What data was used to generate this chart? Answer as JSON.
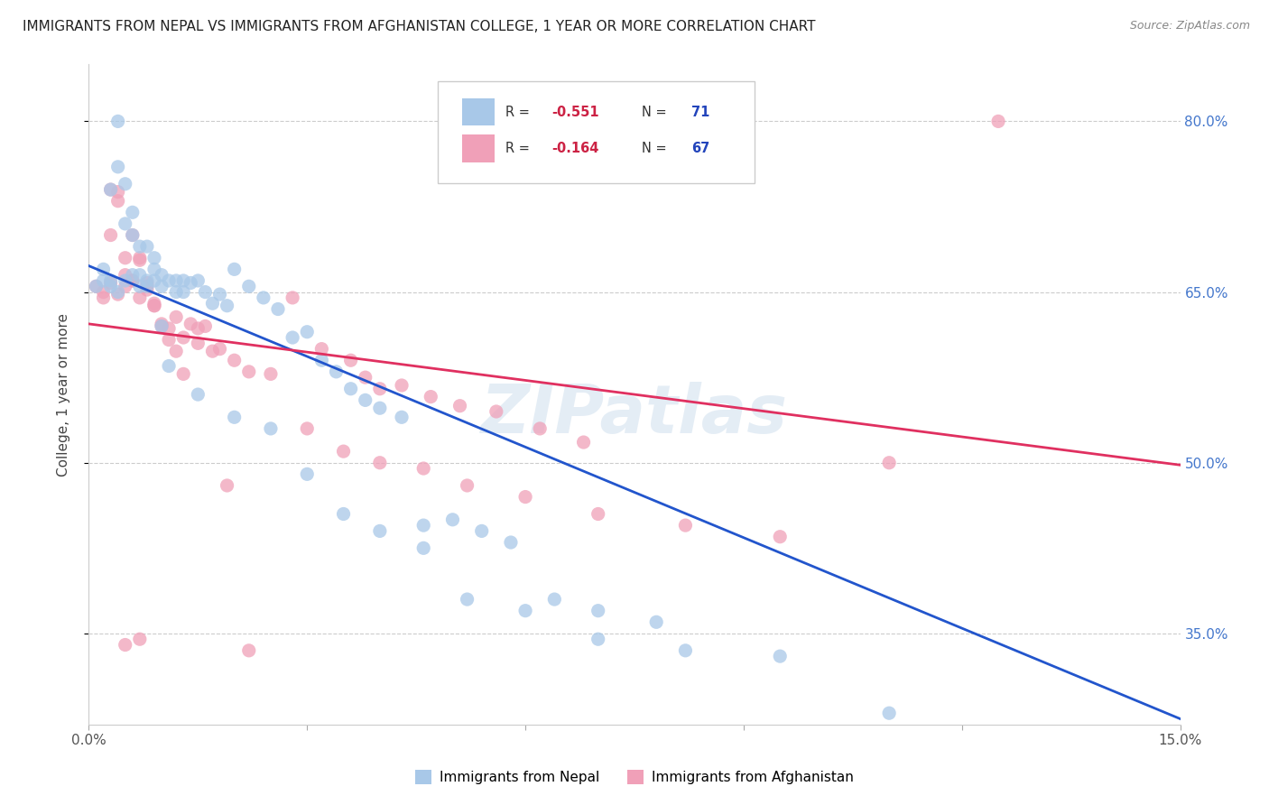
{
  "title": "IMMIGRANTS FROM NEPAL VS IMMIGRANTS FROM AFGHANISTAN COLLEGE, 1 YEAR OR MORE CORRELATION CHART",
  "source": "Source: ZipAtlas.com",
  "ylabel": "College, 1 year or more",
  "xlim": [
    0.0,
    0.15
  ],
  "ylim": [
    0.27,
    0.85
  ],
  "ytick_positions": [
    0.35,
    0.5,
    0.65,
    0.8
  ],
  "ytick_labels": [
    "35.0%",
    "50.0%",
    "65.0%",
    "80.0%"
  ],
  "xtick_positions": [
    0.0,
    0.03,
    0.06,
    0.09,
    0.12,
    0.15
  ],
  "xtick_labels": [
    "0.0%",
    "",
    "",
    "",
    "",
    "15.0%"
  ],
  "R_nepal": -0.551,
  "N_nepal": 71,
  "R_afghanistan": -0.164,
  "N_afghanistan": 67,
  "color_nepal": "#a8c8e8",
  "color_afghanistan": "#f0a0b8",
  "line_color_nepal": "#2255cc",
  "line_color_afghanistan": "#e03060",
  "legend_nepal": "Immigrants from Nepal",
  "legend_afghanistan": "Immigrants from Afghanistan",
  "watermark": "ZIPatlas",
  "nepal_line_x0": 0.0,
  "nepal_line_y0": 0.673,
  "nepal_line_x1": 0.15,
  "nepal_line_y1": 0.275,
  "afghan_line_x0": 0.0,
  "afghan_line_y0": 0.622,
  "afghan_line_x1": 0.15,
  "afghan_line_y1": 0.498,
  "nepal_x": [
    0.001,
    0.002,
    0.003,
    0.003,
    0.004,
    0.004,
    0.005,
    0.005,
    0.006,
    0.006,
    0.007,
    0.007,
    0.008,
    0.008,
    0.009,
    0.009,
    0.01,
    0.01,
    0.011,
    0.011,
    0.012,
    0.012,
    0.013,
    0.013,
    0.014,
    0.015,
    0.016,
    0.017,
    0.018,
    0.019,
    0.02,
    0.022,
    0.024,
    0.026,
    0.028,
    0.03,
    0.032,
    0.034,
    0.036,
    0.038,
    0.04,
    0.043,
    0.046,
    0.05,
    0.054,
    0.058,
    0.064,
    0.07,
    0.078,
    0.015,
    0.02,
    0.025,
    0.03,
    0.035,
    0.04,
    0.046,
    0.052,
    0.06,
    0.07,
    0.082,
    0.095,
    0.11,
    0.002,
    0.003,
    0.004,
    0.005,
    0.006,
    0.007,
    0.008,
    0.009,
    0.01
  ],
  "nepal_y": [
    0.655,
    0.66,
    0.655,
    0.74,
    0.65,
    0.76,
    0.66,
    0.71,
    0.665,
    0.7,
    0.655,
    0.69,
    0.655,
    0.66,
    0.66,
    0.68,
    0.665,
    0.62,
    0.66,
    0.585,
    0.66,
    0.65,
    0.66,
    0.65,
    0.658,
    0.66,
    0.65,
    0.64,
    0.648,
    0.638,
    0.67,
    0.655,
    0.645,
    0.635,
    0.61,
    0.615,
    0.59,
    0.58,
    0.565,
    0.555,
    0.548,
    0.54,
    0.445,
    0.45,
    0.44,
    0.43,
    0.38,
    0.37,
    0.36,
    0.56,
    0.54,
    0.53,
    0.49,
    0.455,
    0.44,
    0.425,
    0.38,
    0.37,
    0.345,
    0.335,
    0.33,
    0.28,
    0.67,
    0.66,
    0.8,
    0.745,
    0.72,
    0.665,
    0.69,
    0.67,
    0.655
  ],
  "afghanistan_x": [
    0.001,
    0.002,
    0.003,
    0.003,
    0.004,
    0.004,
    0.005,
    0.005,
    0.006,
    0.006,
    0.007,
    0.007,
    0.008,
    0.008,
    0.009,
    0.009,
    0.01,
    0.011,
    0.012,
    0.013,
    0.014,
    0.015,
    0.016,
    0.018,
    0.02,
    0.022,
    0.025,
    0.028,
    0.032,
    0.036,
    0.038,
    0.04,
    0.043,
    0.047,
    0.051,
    0.056,
    0.062,
    0.068,
    0.03,
    0.035,
    0.04,
    0.046,
    0.052,
    0.06,
    0.07,
    0.082,
    0.095,
    0.11,
    0.002,
    0.003,
    0.004,
    0.005,
    0.006,
    0.007,
    0.008,
    0.009,
    0.01,
    0.011,
    0.012,
    0.013,
    0.015,
    0.017,
    0.019,
    0.022,
    0.125,
    0.005,
    0.007
  ],
  "afghanistan_y": [
    0.655,
    0.645,
    0.658,
    0.7,
    0.648,
    0.73,
    0.655,
    0.665,
    0.66,
    0.66,
    0.645,
    0.68,
    0.652,
    0.655,
    0.64,
    0.638,
    0.62,
    0.618,
    0.628,
    0.61,
    0.622,
    0.605,
    0.62,
    0.6,
    0.59,
    0.58,
    0.578,
    0.645,
    0.6,
    0.59,
    0.575,
    0.565,
    0.568,
    0.558,
    0.55,
    0.545,
    0.53,
    0.518,
    0.53,
    0.51,
    0.5,
    0.495,
    0.48,
    0.47,
    0.455,
    0.445,
    0.435,
    0.5,
    0.65,
    0.74,
    0.738,
    0.68,
    0.7,
    0.678,
    0.658,
    0.638,
    0.622,
    0.608,
    0.598,
    0.578,
    0.618,
    0.598,
    0.48,
    0.335,
    0.8,
    0.34,
    0.345
  ]
}
